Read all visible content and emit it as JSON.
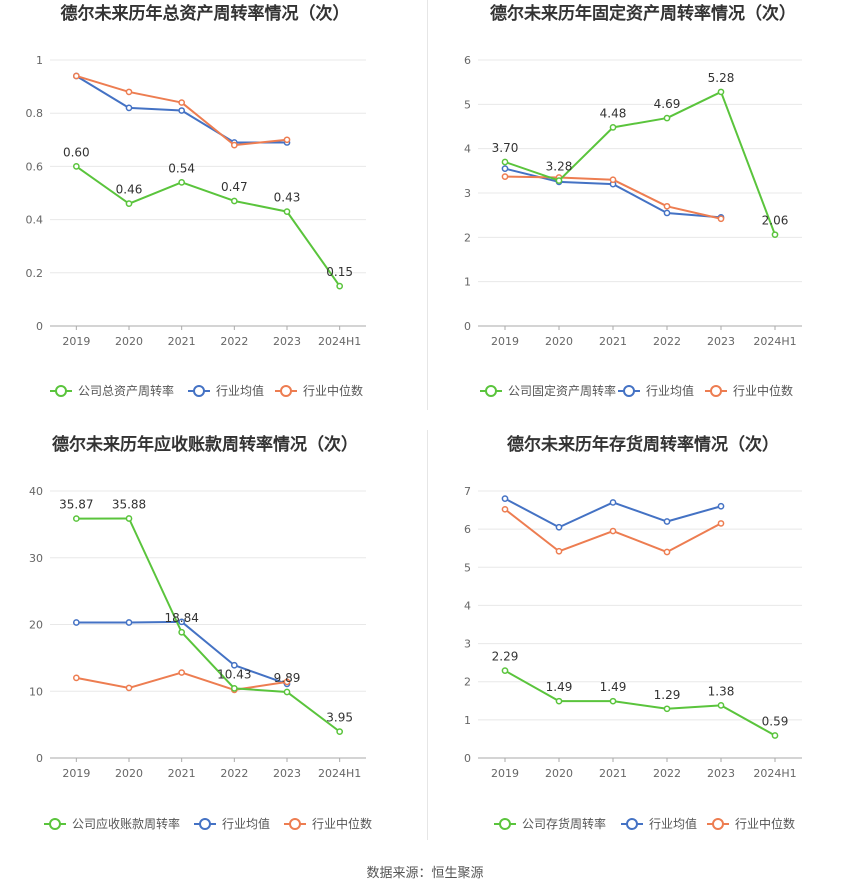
{
  "source": "数据来源：恒生聚源",
  "colors": {
    "company": "#5ac43c",
    "avg": "#4472c4",
    "median": "#ed7d51",
    "grid": "#e8e8e8",
    "axis": "#aaaaaa",
    "tick": "#666666",
    "title": "#333333"
  },
  "chart_data": [
    {
      "type": "line",
      "title": "德尔未来历年总资产周转率情况（次）",
      "categories": [
        "2019",
        "2020",
        "2021",
        "2022",
        "2023",
        "2024H1"
      ],
      "ylim": [
        0,
        1
      ],
      "yticks": [
        "0",
        "0.2",
        "0.4",
        "0.6",
        "0.8",
        "1"
      ],
      "ytick_values": [
        0,
        0.2,
        0.4,
        0.6,
        0.8,
        1
      ],
      "legend": {
        "position": "bottom"
      },
      "series": [
        {
          "name": "公司总资产周转率",
          "role": "company",
          "values": [
            0.6,
            0.46,
            0.54,
            0.47,
            0.43,
            0.15
          ],
          "labels": [
            "0.60",
            "0.46",
            "0.54",
            "0.47",
            "0.43",
            "0.15"
          ]
        },
        {
          "name": "行业均值",
          "role": "avg",
          "values": [
            0.94,
            0.82,
            0.81,
            0.69,
            0.69,
            null
          ]
        },
        {
          "name": "行业中位数",
          "role": "median",
          "values": [
            0.94,
            0.88,
            0.84,
            0.68,
            0.7,
            null
          ]
        }
      ]
    },
    {
      "type": "line",
      "title": "德尔未来历年固定资产周转率情况（次）",
      "categories": [
        "2019",
        "2020",
        "2021",
        "2022",
        "2023",
        "2024H1"
      ],
      "ylim": [
        0,
        6
      ],
      "yticks": [
        "0",
        "1",
        "2",
        "3",
        "4",
        "5",
        "6"
      ],
      "ytick_values": [
        0,
        1,
        2,
        3,
        4,
        5,
        6
      ],
      "legend": {
        "position": "bottom"
      },
      "series": [
        {
          "name": "公司固定资产周转率",
          "role": "company",
          "values": [
            3.7,
            3.28,
            4.48,
            4.69,
            5.28,
            2.06
          ],
          "labels": [
            "3.70",
            "3.28",
            "4.48",
            "4.69",
            "5.28",
            "2.06"
          ]
        },
        {
          "name": "行业均值",
          "role": "avg",
          "values": [
            3.55,
            3.25,
            3.2,
            2.55,
            2.45,
            null
          ]
        },
        {
          "name": "行业中位数",
          "role": "median",
          "values": [
            3.37,
            3.35,
            3.3,
            2.7,
            2.42,
            null
          ]
        }
      ]
    },
    {
      "type": "line",
      "title": "德尔未来历年应收账款周转率情况（次）",
      "categories": [
        "2019",
        "2020",
        "2021",
        "2022",
        "2023",
        "2024H1"
      ],
      "ylim": [
        0,
        40
      ],
      "yticks": [
        "0",
        "10",
        "20",
        "30",
        "40"
      ],
      "ytick_values": [
        0,
        10,
        20,
        30,
        40
      ],
      "legend": {
        "position": "bottom"
      },
      "series": [
        {
          "name": "公司应收账款周转率",
          "role": "company",
          "values": [
            35.87,
            35.88,
            18.84,
            10.43,
            9.89,
            3.95
          ],
          "labels": [
            "35.87",
            "35.88",
            "18.84",
            "10.43",
            "9.89",
            "3.95"
          ]
        },
        {
          "name": "行业均值",
          "role": "avg",
          "values": [
            20.3,
            20.3,
            20.4,
            13.9,
            11.1,
            null
          ]
        },
        {
          "name": "行业中位数",
          "role": "median",
          "values": [
            12.0,
            10.5,
            12.8,
            10.2,
            11.4,
            null
          ]
        }
      ]
    },
    {
      "type": "line",
      "title": "德尔未来历年存货周转率情况（次）",
      "categories": [
        "2019",
        "2020",
        "2021",
        "2022",
        "2023",
        "2024H1"
      ],
      "ylim": [
        0,
        7
      ],
      "yticks": [
        "0",
        "1",
        "2",
        "3",
        "4",
        "5",
        "6",
        "7"
      ],
      "ytick_values": [
        0,
        1,
        2,
        3,
        4,
        5,
        6,
        7
      ],
      "legend": {
        "position": "bottom"
      },
      "series": [
        {
          "name": "公司存货周转率",
          "role": "company",
          "values": [
            2.29,
            1.49,
            1.49,
            1.29,
            1.38,
            0.59
          ],
          "labels": [
            "2.29",
            "1.49",
            "1.49",
            "1.29",
            "1.38",
            "0.59"
          ]
        },
        {
          "name": "行业均值",
          "role": "avg",
          "values": [
            6.8,
            6.05,
            6.7,
            6.2,
            6.6,
            null
          ]
        },
        {
          "name": "行业中位数",
          "role": "median",
          "values": [
            6.52,
            5.42,
            5.95,
            5.4,
            6.15,
            null
          ]
        }
      ]
    }
  ]
}
